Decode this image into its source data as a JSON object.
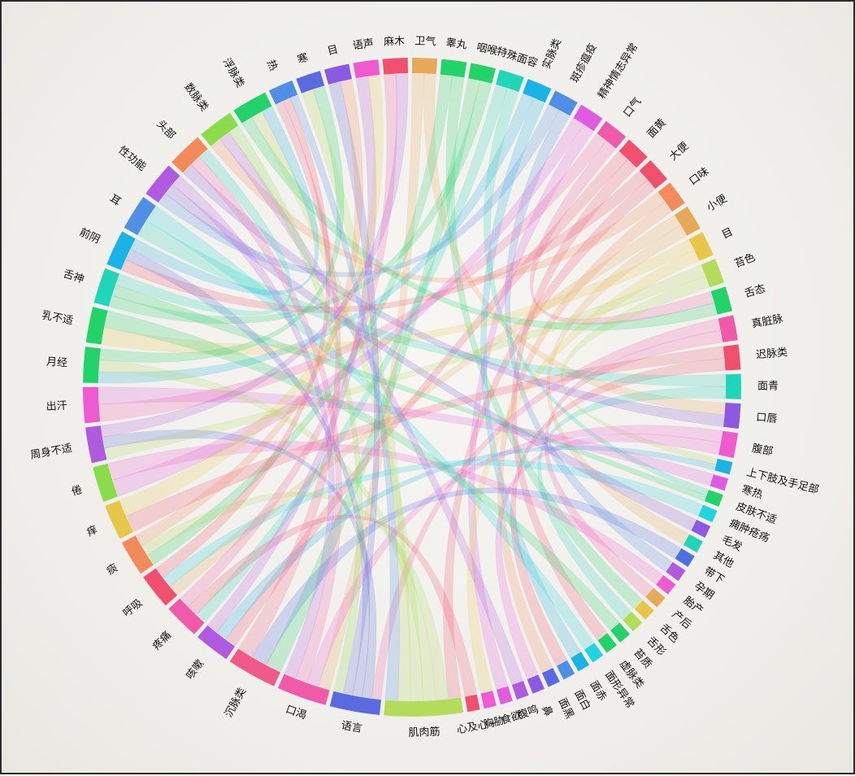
{
  "chart_data": {
    "type": "chord",
    "title": "",
    "categories": [
      {
        "label": "卫气",
        "color": "#e6a95a",
        "weight": 1.4
      },
      {
        "label": "睾丸",
        "color": "#22d36a",
        "weight": 1.4
      },
      {
        "label": "咽喉",
        "color": "#22d36a",
        "weight": 1.4
      },
      {
        "label": "特殊面容",
        "color": "#1fd6b8",
        "weight": 1.4
      },
      {
        "label": "实脉类",
        "color": "#1ab3e6",
        "weight": 1.4
      },
      {
        "label": "斑疹瘟疫",
        "color": "#4f8fe6",
        "weight": 1.4
      },
      {
        "label": "精神情志异常",
        "color": "#e05be0",
        "weight": 1.4
      },
      {
        "label": "口气",
        "color": "#f05aa8",
        "weight": 1.4
      },
      {
        "label": "面黄",
        "color": "#f0506e",
        "weight": 1.4
      },
      {
        "label": "大便",
        "color": "#f0506e",
        "weight": 1.4
      },
      {
        "label": "口味",
        "color": "#f28a5a",
        "weight": 1.4
      },
      {
        "label": "小便",
        "color": "#e6a95a",
        "weight": 1.4
      },
      {
        "label": "目",
        "color": "#e6c74a",
        "weight": 1.4
      },
      {
        "label": "苔色",
        "color": "#b3dc5a",
        "weight": 1.4
      },
      {
        "label": "舌态",
        "color": "#22d36a",
        "weight": 1.4
      },
      {
        "label": "真脏脉",
        "color": "#f05aa8",
        "weight": 1.4
      },
      {
        "label": "迟脉类",
        "color": "#f0506e",
        "weight": 1.4
      },
      {
        "label": "面青",
        "color": "#1fd6b8",
        "weight": 1.4
      },
      {
        "label": "口唇",
        "color": "#8a5ae0",
        "weight": 1.4
      },
      {
        "label": "腹部",
        "color": "#f05ad0",
        "weight": 1.4
      },
      {
        "label": "上下肢及手足部",
        "color": "#1ab3e6",
        "weight": 0.7
      },
      {
        "label": "寒热",
        "color": "#e05be0",
        "weight": 0.7
      },
      {
        "label": "皮肤不适",
        "color": "#22d36a",
        "weight": 0.7
      },
      {
        "label": "痈肿疮疡",
        "color": "#1fd6e0",
        "weight": 0.7
      },
      {
        "label": "毛发",
        "color": "#8a5ae0",
        "weight": 0.7
      },
      {
        "label": "其他",
        "color": "#1fd6b8",
        "weight": 0.7
      },
      {
        "label": "带下",
        "color": "#4f6fe6",
        "weight": 0.7
      },
      {
        "label": "孕期",
        "color": "#b05ae0",
        "weight": 0.7
      },
      {
        "label": "胎产",
        "color": "#f05ad0",
        "weight": 0.7
      },
      {
        "label": "产后",
        "color": "#e6a95a",
        "weight": 0.7
      },
      {
        "label": "舌色",
        "color": "#e6c74a",
        "weight": 0.7
      },
      {
        "label": "舌形",
        "color": "#b3dc5a",
        "weight": 0.7
      },
      {
        "label": "苔质",
        "color": "#22d36a",
        "weight": 0.7
      },
      {
        "label": "虚脉类",
        "color": "#22d36a",
        "weight": 0.7
      },
      {
        "label": "面形异常",
        "color": "#1fd6e0",
        "weight": 0.7
      },
      {
        "label": "面赤",
        "color": "#1ab3e6",
        "weight": 0.7
      },
      {
        "label": "面白",
        "color": "#4f8fe6",
        "weight": 0.7
      },
      {
        "label": "面黑",
        "color": "#5a6ae0",
        "weight": 0.7
      },
      {
        "label": "鼻",
        "color": "#8a5ae0",
        "weight": 0.7
      },
      {
        "label": "腹鸣",
        "color": "#b05ae0",
        "weight": 0.7
      },
      {
        "label": "食欲",
        "color": "#e05be0",
        "weight": 0.7
      },
      {
        "label": "胸胁",
        "color": "#f05ad0",
        "weight": 0.7
      },
      {
        "label": "心及心~",
        "color": "#f0506e",
        "weight": 0.7
      },
      {
        "label": "肌肉筋",
        "color": "#b3dc5a",
        "weight": 4.4
      },
      {
        "label": "语言",
        "color": "#5a6ae0",
        "weight": 2.8
      },
      {
        "label": "口渴",
        "color": "#f05aa8",
        "weight": 2.8
      },
      {
        "label": "沉脉类",
        "color": "#f05a8a",
        "weight": 2.8
      },
      {
        "label": "咳嗽",
        "color": "#b05ae0",
        "weight": 2.0
      },
      {
        "label": "疼痛",
        "color": "#f05aa8",
        "weight": 2.0
      },
      {
        "label": "呼吸",
        "color": "#f0506e",
        "weight": 2.0
      },
      {
        "label": "痰",
        "color": "#f28a5a",
        "weight": 2.0
      },
      {
        "label": "痒",
        "color": "#e6c74a",
        "weight": 2.0
      },
      {
        "label": "倦",
        "color": "#8adc4a",
        "weight": 2.0
      },
      {
        "label": "周身不适",
        "color": "#b05ae0",
        "weight": 2.0
      },
      {
        "label": "出汗",
        "color": "#f05ad0",
        "weight": 2.0
      },
      {
        "label": "月经",
        "color": "#22d36a",
        "weight": 2.0
      },
      {
        "label": "乳不适",
        "color": "#22d36a",
        "weight": 2.0
      },
      {
        "label": "舌神",
        "color": "#1fd6b8",
        "weight": 2.0
      },
      {
        "label": "前阴",
        "color": "#1ab3e6",
        "weight": 2.0
      },
      {
        "label": "耳",
        "color": "#4f8fe6",
        "weight": 2.0
      },
      {
        "label": "性功能",
        "color": "#b05ae0",
        "weight": 2.0
      },
      {
        "label": "头部",
        "color": "#f28a5a",
        "weight": 2.0
      },
      {
        "label": "数脉类",
        "color": "#8adc4a",
        "weight": 2.0
      },
      {
        "label": "浮脉类",
        "color": "#22d36a",
        "weight": 2.0
      },
      {
        "label": "热",
        "color": "#4f8fe6",
        "weight": 1.4
      },
      {
        "label": "寒",
        "color": "#5a6ae0",
        "weight": 1.4
      },
      {
        "label": "目",
        "color": "#8a5ae0",
        "weight": 1.4
      },
      {
        "label": "语声",
        "color": "#f05ad0",
        "weight": 1.4
      },
      {
        "label": "麻木",
        "color": "#f0506e",
        "weight": 1.4
      }
    ],
    "links": [
      [
        0,
        45
      ],
      [
        0,
        18
      ],
      [
        1,
        50
      ],
      [
        1,
        30
      ],
      [
        2,
        46
      ],
      [
        2,
        57
      ],
      [
        3,
        48
      ],
      [
        3,
        22
      ],
      [
        4,
        55
      ],
      [
        4,
        35
      ],
      [
        5,
        60
      ],
      [
        5,
        27
      ],
      [
        6,
        52
      ],
      [
        6,
        40
      ],
      [
        7,
        54
      ],
      [
        7,
        14
      ],
      [
        8,
        47
      ],
      [
        8,
        33
      ],
      [
        9,
        58
      ],
      [
        9,
        43
      ],
      [
        10,
        62
      ],
      [
        10,
        37
      ],
      [
        11,
        49
      ],
      [
        11,
        25
      ],
      [
        12,
        56
      ],
      [
        12,
        41
      ],
      [
        13,
        53
      ],
      [
        13,
        20
      ],
      [
        14,
        63
      ],
      [
        15,
        44
      ],
      [
        15,
        29
      ],
      [
        16,
        51
      ],
      [
        16,
        36
      ],
      [
        17,
        59
      ],
      [
        17,
        31
      ],
      [
        18,
        61
      ],
      [
        19,
        45
      ],
      [
        19,
        38
      ],
      [
        20,
        47
      ],
      [
        21,
        54
      ],
      [
        22,
        57
      ],
      [
        23,
        49
      ],
      [
        24,
        60
      ],
      [
        26,
        46
      ],
      [
        28,
        52
      ],
      [
        32,
        56
      ],
      [
        34,
        59
      ],
      [
        39,
        62
      ],
      [
        42,
        48
      ],
      [
        43,
        50
      ],
      [
        43,
        55
      ],
      [
        43,
        63
      ],
      [
        43,
        65
      ],
      [
        44,
        53
      ],
      [
        44,
        58
      ],
      [
        44,
        66
      ],
      [
        45,
        61
      ],
      [
        46,
        64
      ],
      [
        47,
        67
      ],
      [
        48,
        68
      ],
      [
        49,
        64
      ],
      [
        50,
        66
      ],
      [
        51,
        67
      ],
      [
        53,
        68
      ],
      [
        55,
        65
      ],
      [
        57,
        61
      ],
      [
        58,
        63
      ],
      [
        60,
        45
      ],
      [
        62,
        44
      ],
      [
        64,
        43
      ]
    ]
  }
}
